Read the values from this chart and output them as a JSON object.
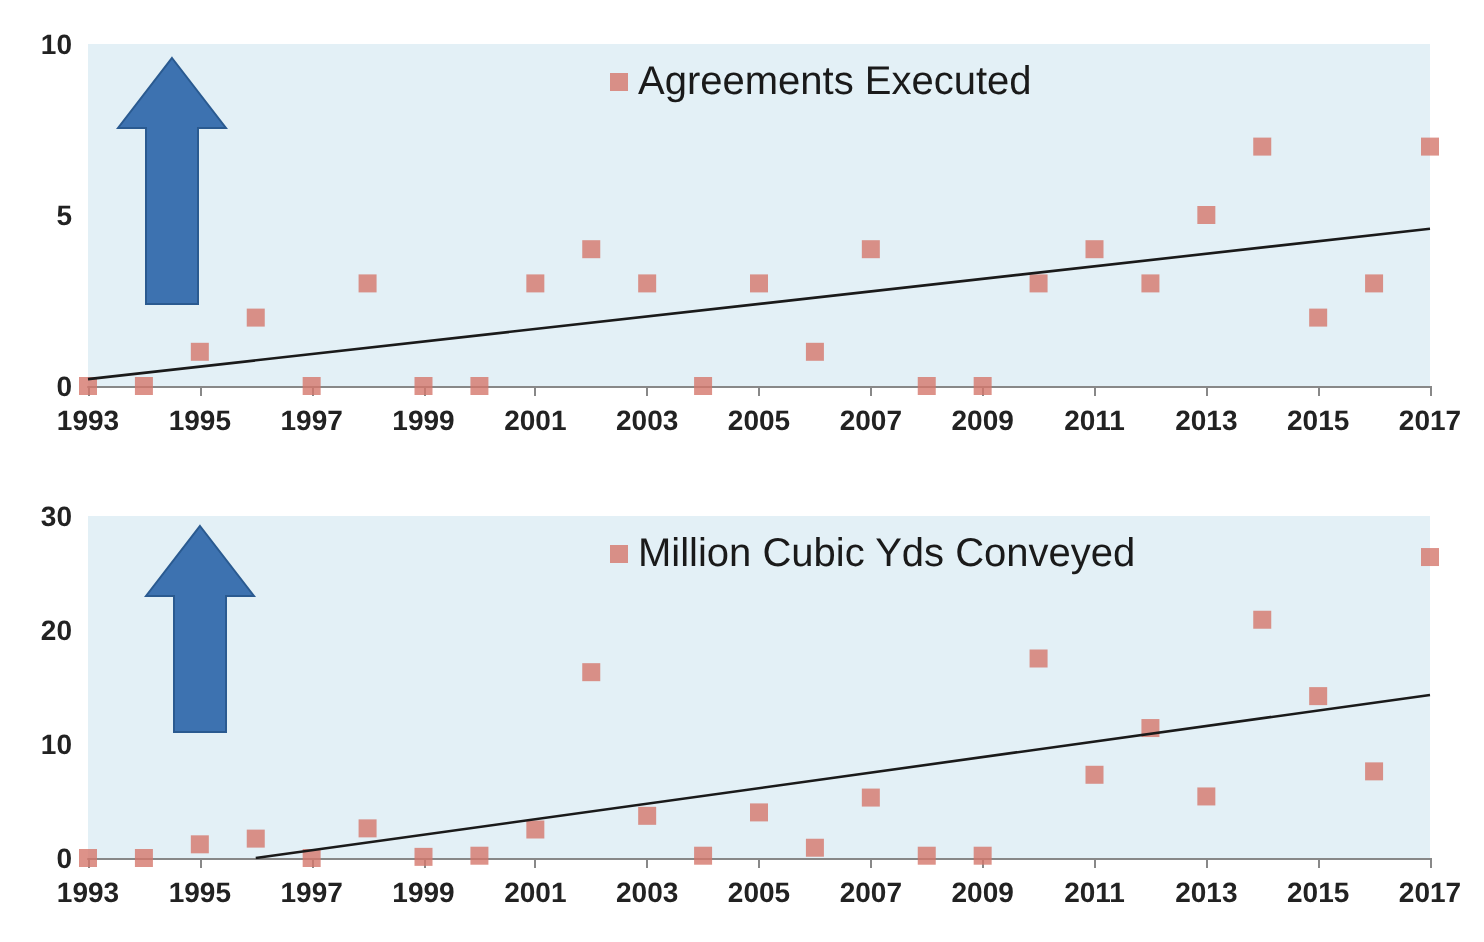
{
  "chart_data": [
    {
      "type": "scatter",
      "x": [
        1993,
        1994,
        1995,
        1996,
        1997,
        1998,
        1999,
        2000,
        2001,
        2002,
        2003,
        2004,
        2005,
        2006,
        2007,
        2008,
        2009,
        2010,
        2011,
        2012,
        2013,
        2014,
        2015,
        2016,
        2017
      ],
      "series": [
        {
          "name": "Agreements Executed",
          "color": "#d4776c",
          "values": [
            0,
            0,
            1,
            2,
            0,
            3,
            0,
            0,
            3,
            4,
            3,
            0,
            3,
            1,
            4,
            0,
            0,
            3,
            4,
            3,
            5,
            7,
            2,
            3,
            7
          ]
        },
        {
          "type": "line",
          "color": "#1a1a1a",
          "x": [
            1993,
            2017
          ],
          "values": [
            0.2,
            4.6
          ],
          "marker": "none",
          "line_style": "solid"
        }
      ],
      "xlim": [
        1993,
        2017
      ],
      "xticks": [
        1993,
        1995,
        1997,
        1999,
        2001,
        2003,
        2005,
        2007,
        2009,
        2011,
        2013,
        2015,
        2017
      ],
      "ylim": [
        0,
        10
      ],
      "yticks": [
        0,
        5,
        10
      ],
      "grid": false,
      "legend": "top",
      "marker": "square"
    },
    {
      "type": "scatter",
      "x": [
        1993,
        1994,
        1995,
        1996,
        1997,
        1998,
        1999,
        2000,
        2001,
        2002,
        2003,
        2004,
        2005,
        2006,
        2007,
        2008,
        2009,
        2010,
        2011,
        2012,
        2013,
        2014,
        2015,
        2016,
        2017
      ],
      "series": [
        {
          "name": "Million Cubic Yds Conveyed",
          "color": "#d4776c",
          "values": [
            0,
            0,
            1.2,
            1.7,
            0,
            2.6,
            0.1,
            0.2,
            2.5,
            16.3,
            3.7,
            0.2,
            4,
            0.9,
            5.3,
            0.2,
            0.2,
            17.5,
            7.3,
            11.4,
            5.4,
            20.9,
            14.2,
            7.6,
            26.4
          ]
        },
        {
          "type": "line",
          "color": "#1a1a1a",
          "x": [
            1996,
            2017
          ],
          "values": [
            0,
            14.3
          ],
          "marker": "none",
          "line_style": "solid"
        }
      ],
      "xlim": [
        1993,
        2017
      ],
      "xticks": [
        1993,
        1995,
        1997,
        1999,
        2001,
        2003,
        2005,
        2007,
        2009,
        2011,
        2013,
        2015,
        2017
      ],
      "ylim": [
        0,
        30
      ],
      "yticks": [
        0,
        10,
        20,
        30
      ],
      "grid": false,
      "legend": "top",
      "marker": "square"
    }
  ]
}
